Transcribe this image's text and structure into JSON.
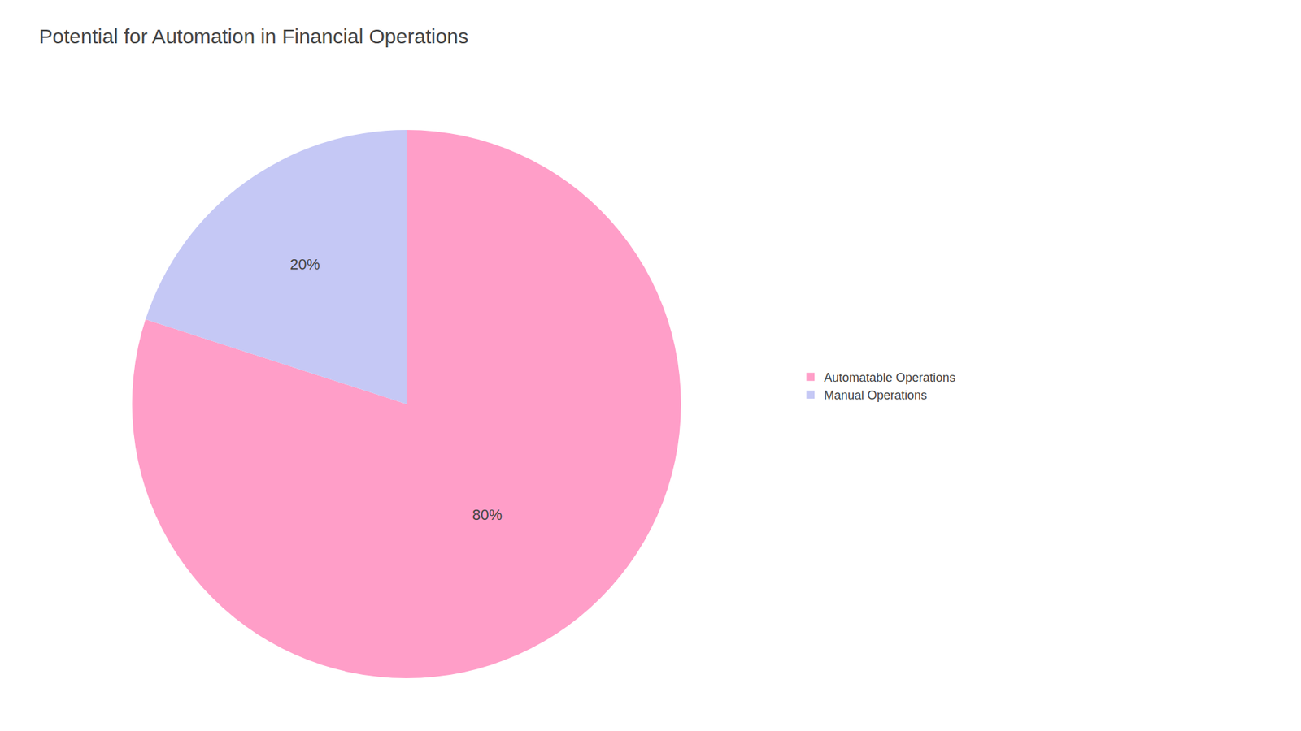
{
  "chart_data": {
    "type": "pie",
    "title": "Potential for Automation in Financial Operations",
    "categories": [
      "Automatable Operations",
      "Manual Operations"
    ],
    "values": [
      80,
      20
    ],
    "value_labels": [
      "80%",
      "20%"
    ],
    "colors": [
      "#FF9EC8",
      "#C5C8F5"
    ],
    "data_labels": true,
    "legend": "right"
  }
}
